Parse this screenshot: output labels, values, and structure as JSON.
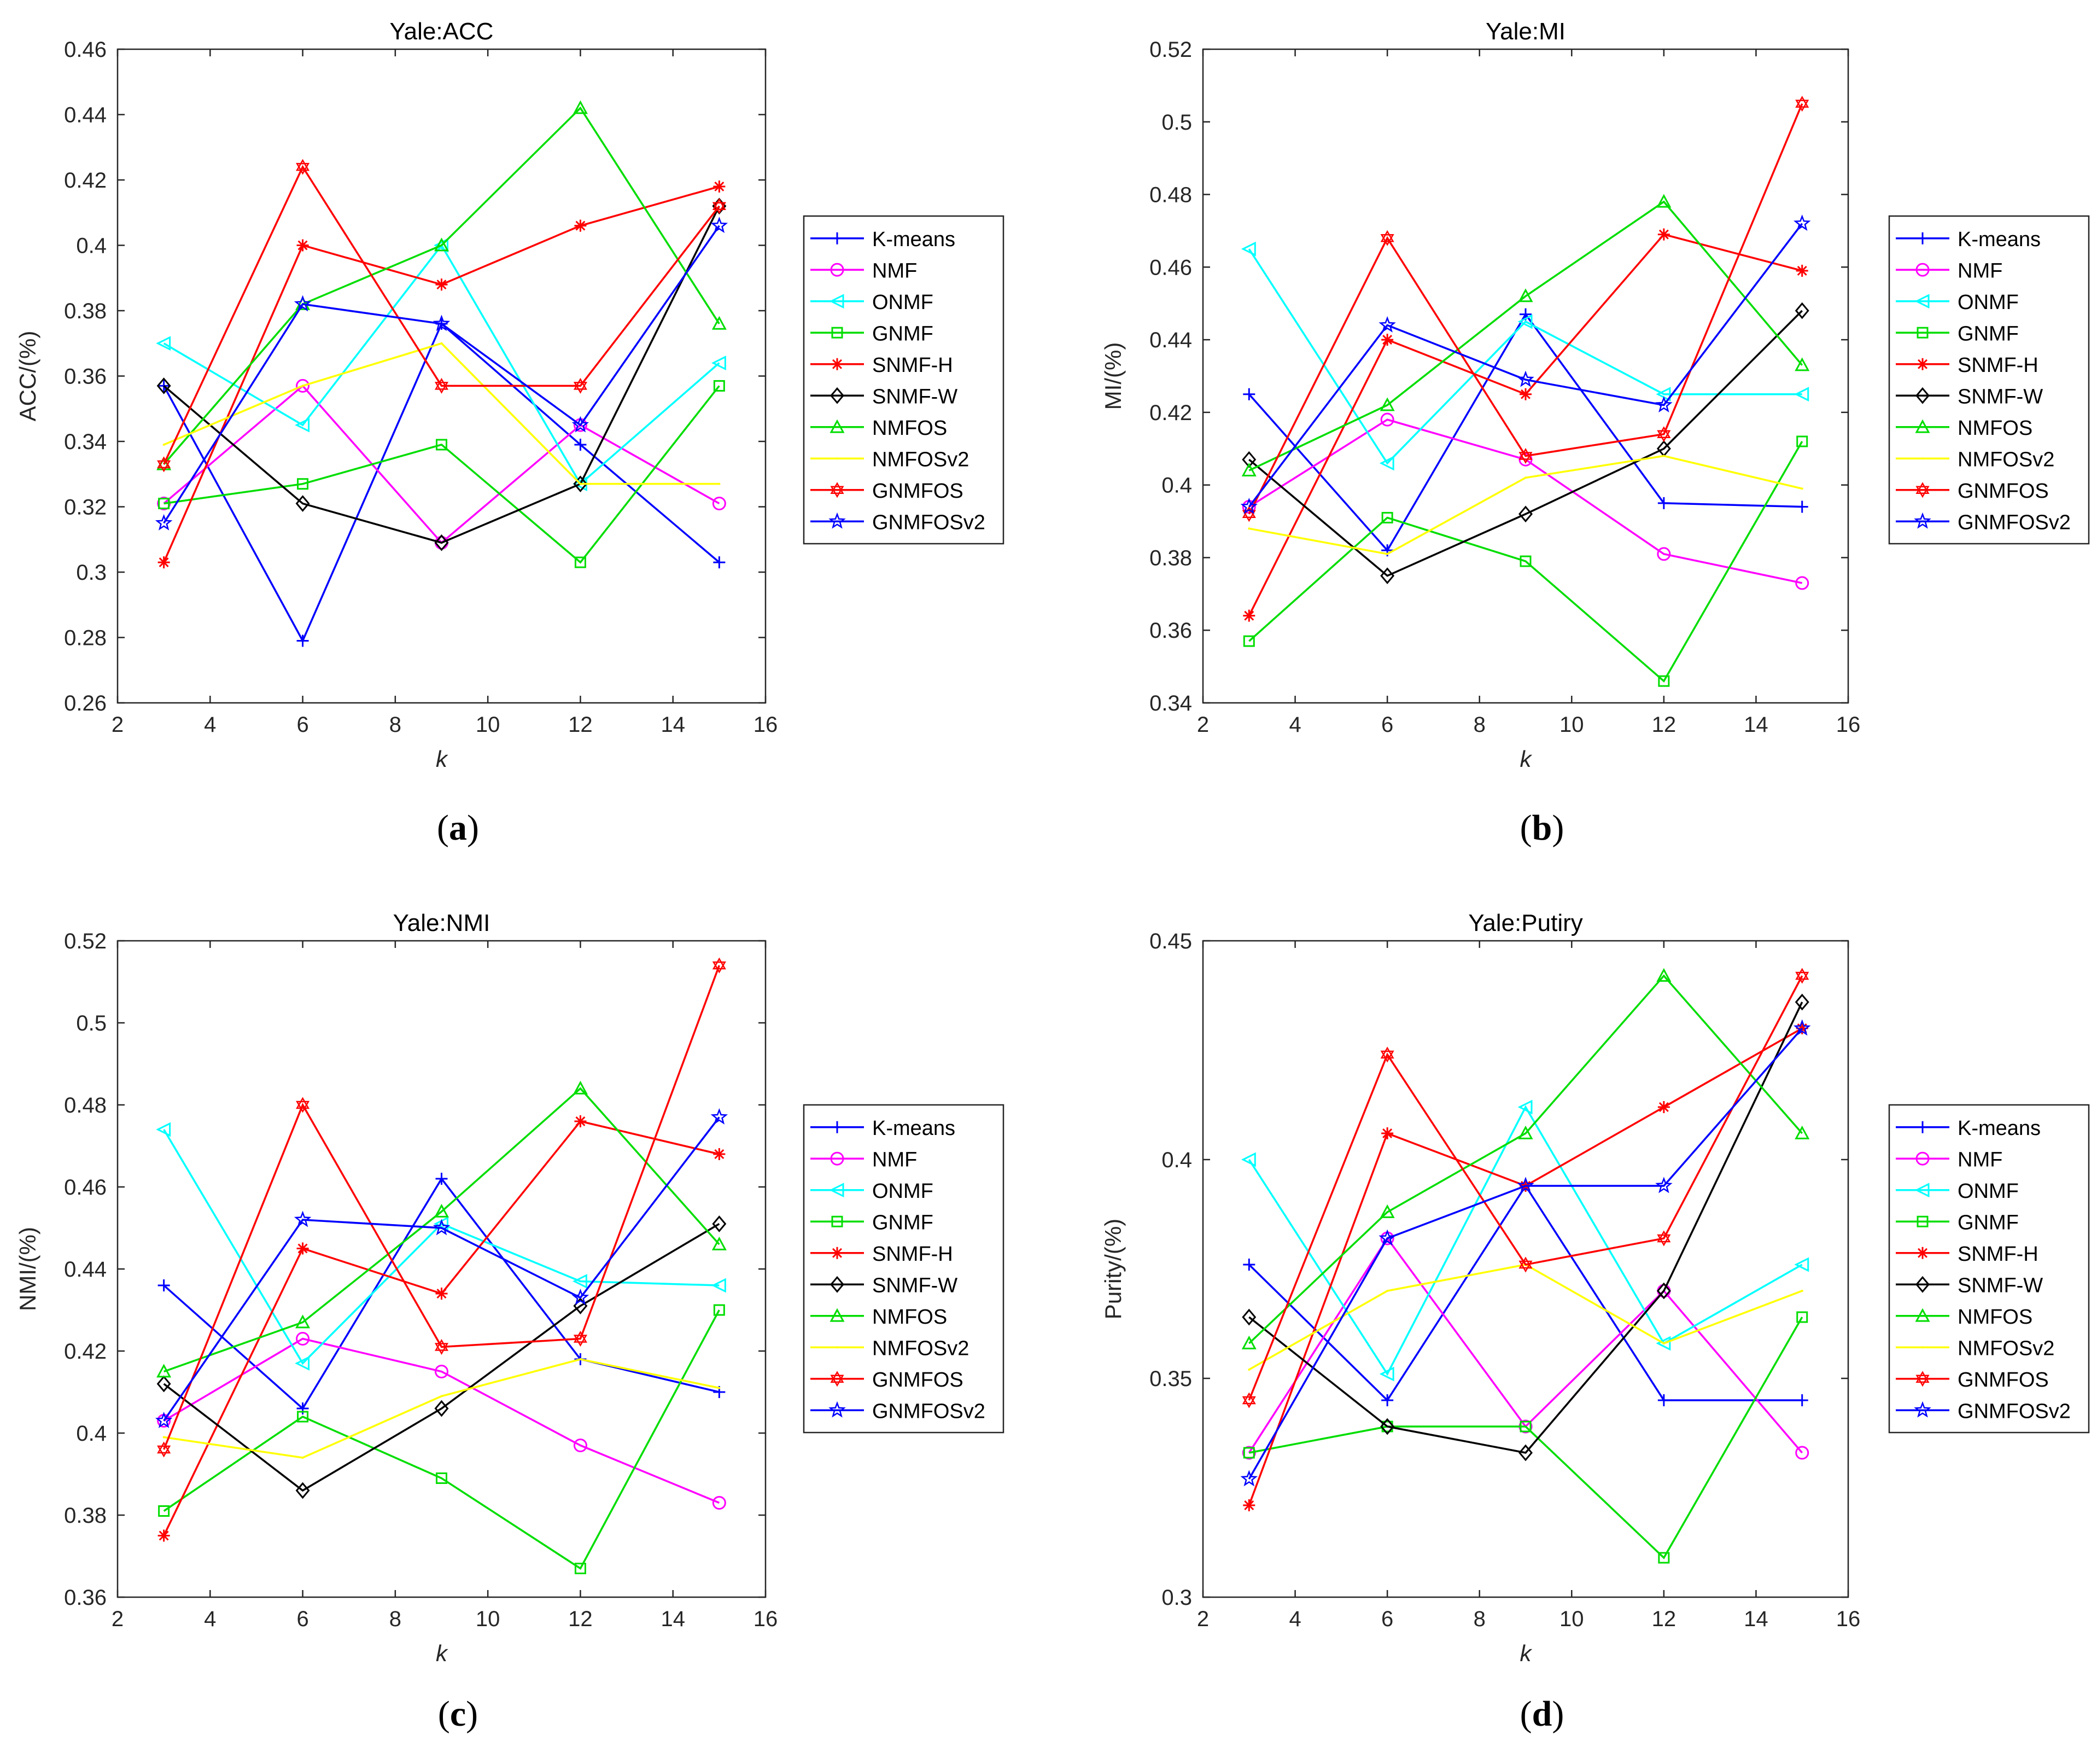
{
  "series_styles": [
    {
      "name": "K-means",
      "color": "#0000ff",
      "marker": "plus"
    },
    {
      "name": "NMF",
      "color": "#ff00ff",
      "marker": "circle"
    },
    {
      "name": "ONMF",
      "color": "#00ffff",
      "marker": "triangle-left"
    },
    {
      "name": "GNMF",
      "color": "#00dd00",
      "marker": "square"
    },
    {
      "name": "SNMF-H",
      "color": "#ff0000",
      "marker": "asterisk"
    },
    {
      "name": "SNMF-W",
      "color": "#000000",
      "marker": "diamond"
    },
    {
      "name": "NMFOS",
      "color": "#00dd00",
      "marker": "triangle-up"
    },
    {
      "name": "NMFOSv2",
      "color": "#ffff00",
      "marker": "point"
    },
    {
      "name": "GNMFOS",
      "color": "#ff0000",
      "marker": "hexagram"
    },
    {
      "name": "GNMFOSv2",
      "color": "#0000ff",
      "marker": "pentagram"
    }
  ],
  "chart_data": [
    {
      "type": "line",
      "panel": "(a)",
      "title": "Yale:ACC",
      "xlabel": "k",
      "ylabel": "ACC/(%)",
      "xlim": [
        2,
        16
      ],
      "ylim": [
        0.26,
        0.46
      ],
      "xticks": [
        2,
        4,
        6,
        8,
        10,
        12,
        14,
        16
      ],
      "yticks": [
        0.26,
        0.28,
        0.3,
        0.32,
        0.34,
        0.36,
        0.38,
        0.4,
        0.42,
        0.44,
        0.46
      ],
      "ytick_labels": [
        "0.26",
        "0.28",
        "0.3",
        "0.32",
        "0.34",
        "0.36",
        "0.38",
        "0.4",
        "0.42",
        "0.44",
        "0.46"
      ],
      "x": [
        3,
        6,
        9,
        12,
        15
      ],
      "series": [
        {
          "name": "K-means",
          "values": [
            0.357,
            0.279,
            0.376,
            0.339,
            0.303
          ]
        },
        {
          "name": "NMF",
          "values": [
            0.321,
            0.357,
            0.309,
            0.345,
            0.321
          ]
        },
        {
          "name": "ONMF",
          "values": [
            0.37,
            0.345,
            0.4,
            0.327,
            0.364
          ]
        },
        {
          "name": "GNMF",
          "values": [
            0.321,
            0.327,
            0.339,
            0.303,
            0.357
          ]
        },
        {
          "name": "SNMF-H",
          "values": [
            0.303,
            0.4,
            0.388,
            0.406,
            0.418
          ]
        },
        {
          "name": "SNMF-W",
          "values": [
            0.357,
            0.321,
            0.309,
            0.327,
            0.412
          ]
        },
        {
          "name": "NMFOS",
          "values": [
            0.333,
            0.382,
            0.4,
            0.442,
            0.376
          ]
        },
        {
          "name": "NMFOSv2",
          "values": [
            0.339,
            0.357,
            0.37,
            0.327,
            0.327
          ]
        },
        {
          "name": "GNMFOS",
          "values": [
            0.333,
            0.424,
            0.357,
            0.357,
            0.412
          ]
        },
        {
          "name": "GNMFOSv2",
          "values": [
            0.315,
            0.382,
            0.376,
            0.345,
            0.406
          ]
        }
      ]
    },
    {
      "type": "line",
      "panel": "(b)",
      "title": "Yale:MI",
      "xlabel": "k",
      "ylabel": "MI/(%)",
      "xlim": [
        2,
        16
      ],
      "ylim": [
        0.34,
        0.52
      ],
      "xticks": [
        2,
        4,
        6,
        8,
        10,
        12,
        14,
        16
      ],
      "yticks": [
        0.34,
        0.36,
        0.38,
        0.4,
        0.42,
        0.44,
        0.46,
        0.48,
        0.5,
        0.52
      ],
      "ytick_labels": [
        "0.34",
        "0.36",
        "0.38",
        "0.4",
        "0.42",
        "0.44",
        "0.46",
        "0.48",
        "0.5",
        "0.52"
      ],
      "x": [
        3,
        6,
        9,
        12,
        15
      ],
      "series": [
        {
          "name": "K-means",
          "values": [
            0.425,
            0.382,
            0.447,
            0.395,
            0.394
          ]
        },
        {
          "name": "NMF",
          "values": [
            0.394,
            0.418,
            0.407,
            0.381,
            0.373
          ]
        },
        {
          "name": "ONMF",
          "values": [
            0.465,
            0.406,
            0.445,
            0.425,
            0.425
          ]
        },
        {
          "name": "GNMF",
          "values": [
            0.357,
            0.391,
            0.379,
            0.346,
            0.412
          ]
        },
        {
          "name": "SNMF-H",
          "values": [
            0.364,
            0.44,
            0.425,
            0.469,
            0.459
          ]
        },
        {
          "name": "SNMF-W",
          "values": [
            0.407,
            0.375,
            0.392,
            0.41,
            0.448
          ]
        },
        {
          "name": "NMFOS",
          "values": [
            0.404,
            0.422,
            0.452,
            0.478,
            0.433
          ]
        },
        {
          "name": "NMFOSv2",
          "values": [
            0.388,
            0.381,
            0.402,
            0.408,
            0.399
          ]
        },
        {
          "name": "GNMFOS",
          "values": [
            0.392,
            0.468,
            0.408,
            0.414,
            0.505
          ]
        },
        {
          "name": "GNMFOSv2",
          "values": [
            0.394,
            0.444,
            0.429,
            0.422,
            0.472
          ]
        }
      ]
    },
    {
      "type": "line",
      "panel": "(c)",
      "title": "Yale:NMI",
      "xlabel": "k",
      "ylabel": "NMI/(%)",
      "xlim": [
        2,
        16
      ],
      "ylim": [
        0.36,
        0.52
      ],
      "xticks": [
        2,
        4,
        6,
        8,
        10,
        12,
        14,
        16
      ],
      "yticks": [
        0.36,
        0.38,
        0.4,
        0.42,
        0.44,
        0.46,
        0.48,
        0.5,
        0.52
      ],
      "ytick_labels": [
        "0.36",
        "0.38",
        "0.4",
        "0.42",
        "0.44",
        "0.46",
        "0.48",
        "0.5",
        "0.52"
      ],
      "x": [
        3,
        6,
        9,
        12,
        15
      ],
      "series": [
        {
          "name": "K-means",
          "values": [
            0.436,
            0.406,
            0.462,
            0.418,
            0.41
          ]
        },
        {
          "name": "NMF",
          "values": [
            0.403,
            0.423,
            0.415,
            0.397,
            0.383
          ]
        },
        {
          "name": "ONMF",
          "values": [
            0.474,
            0.417,
            0.451,
            0.437,
            0.436
          ]
        },
        {
          "name": "GNMF",
          "values": [
            0.381,
            0.404,
            0.389,
            0.367,
            0.43
          ]
        },
        {
          "name": "SNMF-H",
          "values": [
            0.375,
            0.445,
            0.434,
            0.476,
            0.468
          ]
        },
        {
          "name": "SNMF-W",
          "values": [
            0.412,
            0.386,
            0.406,
            0.431,
            0.451
          ]
        },
        {
          "name": "NMFOS",
          "values": [
            0.415,
            0.427,
            0.454,
            0.484,
            0.446
          ]
        },
        {
          "name": "NMFOSv2",
          "values": [
            0.399,
            0.394,
            0.409,
            0.418,
            0.411
          ]
        },
        {
          "name": "GNMFOS",
          "values": [
            0.396,
            0.48,
            0.421,
            0.423,
            0.514
          ]
        },
        {
          "name": "GNMFOSv2",
          "values": [
            0.403,
            0.452,
            0.45,
            0.433,
            0.477
          ]
        }
      ]
    },
    {
      "type": "line",
      "panel": "(d)",
      "title": "Yale:Putiry",
      "xlabel": "k",
      "ylabel": "Purity/(%)",
      "xlim": [
        2,
        16
      ],
      "ylim": [
        0.3,
        0.45
      ],
      "xticks": [
        2,
        4,
        6,
        8,
        10,
        12,
        14,
        16
      ],
      "yticks": [
        0.3,
        0.35,
        0.4,
        0.45
      ],
      "ytick_labels": [
        "0.3",
        "0.35",
        "0.4",
        "0.45"
      ],
      "x": [
        3,
        6,
        9,
        12,
        15
      ],
      "series": [
        {
          "name": "K-means",
          "values": [
            0.376,
            0.345,
            0.394,
            0.345,
            0.345
          ]
        },
        {
          "name": "NMF",
          "values": [
            0.333,
            0.382,
            0.339,
            0.37,
            0.333
          ]
        },
        {
          "name": "ONMF",
          "values": [
            0.4,
            0.351,
            0.412,
            0.358,
            0.376
          ]
        },
        {
          "name": "GNMF",
          "values": [
            0.333,
            0.339,
            0.339,
            0.309,
            0.364
          ]
        },
        {
          "name": "SNMF-H",
          "values": [
            0.321,
            0.406,
            0.394,
            0.412,
            0.43
          ]
        },
        {
          "name": "SNMF-W",
          "values": [
            0.364,
            0.339,
            0.333,
            0.37,
            0.436
          ]
        },
        {
          "name": "NMFOS",
          "values": [
            0.358,
            0.388,
            0.406,
            0.442,
            0.406
          ]
        },
        {
          "name": "NMFOSv2",
          "values": [
            0.352,
            0.37,
            0.376,
            0.358,
            0.37
          ]
        },
        {
          "name": "GNMFOS",
          "values": [
            0.345,
            0.424,
            0.376,
            0.382,
            0.442
          ]
        },
        {
          "name": "GNMFOSv2",
          "values": [
            0.327,
            0.382,
            0.394,
            0.394,
            0.43
          ]
        }
      ]
    }
  ]
}
